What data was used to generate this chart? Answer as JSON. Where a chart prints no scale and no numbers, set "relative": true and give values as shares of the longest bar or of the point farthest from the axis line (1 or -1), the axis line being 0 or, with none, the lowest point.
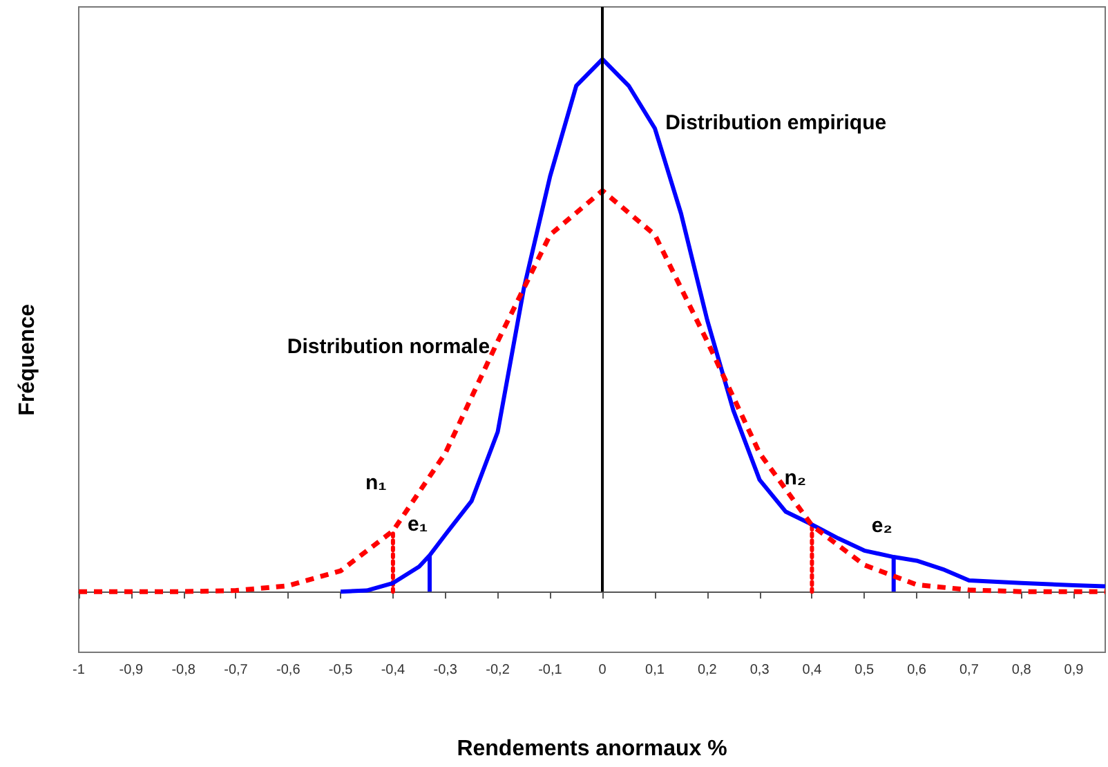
{
  "chart_data": {
    "type": "line",
    "relative": true,
    "xlabel": "Rendements anormaux %",
    "ylabel": "Fréquence",
    "xlim": [
      -1,
      0.96
    ],
    "xticks": [
      {
        "value": -1,
        "label": "-1"
      },
      {
        "value": -0.9,
        "label": "-0,9"
      },
      {
        "value": -0.8,
        "label": "-0,8"
      },
      {
        "value": -0.7,
        "label": "-0,7"
      },
      {
        "value": -0.6,
        "label": "-0,6"
      },
      {
        "value": -0.5,
        "label": "-0,5"
      },
      {
        "value": -0.4,
        "label": "-0,4"
      },
      {
        "value": -0.3,
        "label": "-0,3"
      },
      {
        "value": -0.2,
        "label": "-0,2"
      },
      {
        "value": -0.1,
        "label": "-0,1"
      },
      {
        "value": 0,
        "label": "0"
      },
      {
        "value": 0.1,
        "label": "0,1"
      },
      {
        "value": 0.2,
        "label": "0,2"
      },
      {
        "value": 0.3,
        "label": "0,3"
      },
      {
        "value": 0.4,
        "label": "0,4"
      },
      {
        "value": 0.5,
        "label": "0,5"
      },
      {
        "value": 0.6,
        "label": "0,6"
      },
      {
        "value": 0.7,
        "label": "0,7"
      },
      {
        "value": 0.8,
        "label": "0,8"
      },
      {
        "value": 0.9,
        "label": "0,9"
      }
    ],
    "tick_labels": "x",
    "grid": false,
    "legend": false,
    "marker": "none",
    "series": [
      {
        "name": "Distribution empirique",
        "color": "#0000ff",
        "line_style": "solid",
        "x": [
          -0.5,
          -0.45,
          -0.4,
          -0.35,
          -0.33,
          -0.3,
          -0.25,
          -0.2,
          -0.15,
          -0.1,
          -0.05,
          0,
          0.05,
          0.1,
          0.15,
          0.2,
          0.25,
          0.3,
          0.35,
          0.4,
          0.45,
          0.5,
          0.556,
          0.6,
          0.65,
          0.7,
          0.8,
          0.9,
          0.96
        ],
        "values": [
          0,
          0.002,
          0.016,
          0.047,
          0.068,
          0.107,
          0.17,
          0.3,
          0.57,
          0.78,
          0.95,
          1,
          0.95,
          0.87,
          0.71,
          0.51,
          0.34,
          0.21,
          0.15,
          0.126,
          0.1,
          0.077,
          0.065,
          0.058,
          0.042,
          0.021,
          0.016,
          0.012,
          0.01
        ]
      },
      {
        "name": "Distribution normale",
        "color": "#ff0000",
        "line_style": "dashed",
        "x": [
          -1,
          -0.9,
          -0.8,
          -0.7,
          -0.6,
          -0.5,
          -0.4,
          -0.3,
          -0.2,
          -0.1,
          0,
          0.1,
          0.2,
          0.3,
          0.4,
          0.5,
          0.6,
          0.7,
          0.8,
          0.96
        ],
        "values": [
          0,
          0,
          0,
          0.002,
          0.011,
          0.039,
          0.114,
          0.26,
          0.47,
          0.67,
          0.753,
          0.67,
          0.47,
          0.26,
          0.124,
          0.05,
          0.013,
          0.003,
          0,
          0
        ]
      },
      {
        "color": "#ff0000",
        "line_style": "dotted",
        "x": [
          -0.4,
          -0.4
        ],
        "values": [
          0,
          0.114
        ]
      },
      {
        "color": "#ff0000",
        "line_style": "dotted",
        "x": [
          0.4,
          0.4
        ],
        "values": [
          0,
          0.124
        ]
      },
      {
        "color": "#0000ff",
        "line_style": "solid",
        "x": [
          -0.33,
          -0.33
        ],
        "values": [
          0,
          0.068
        ]
      },
      {
        "color": "#0000ff",
        "line_style": "solid",
        "x": [
          0.556,
          0.556
        ],
        "values": [
          0,
          0.065
        ]
      }
    ],
    "ref_lines": [
      {
        "axis": "x",
        "value": 0,
        "color": "#000000",
        "line_style": "solid"
      }
    ],
    "annotations": [
      {
        "text": "n₁",
        "x": -0.4,
        "y": 0.114
      },
      {
        "text": "e₁",
        "x": -0.33,
        "y": 0.068
      },
      {
        "text": "n₂",
        "x": 0.4,
        "y": 0.124
      },
      {
        "text": "e₂",
        "x": 0.556,
        "y": 0.065
      }
    ]
  }
}
